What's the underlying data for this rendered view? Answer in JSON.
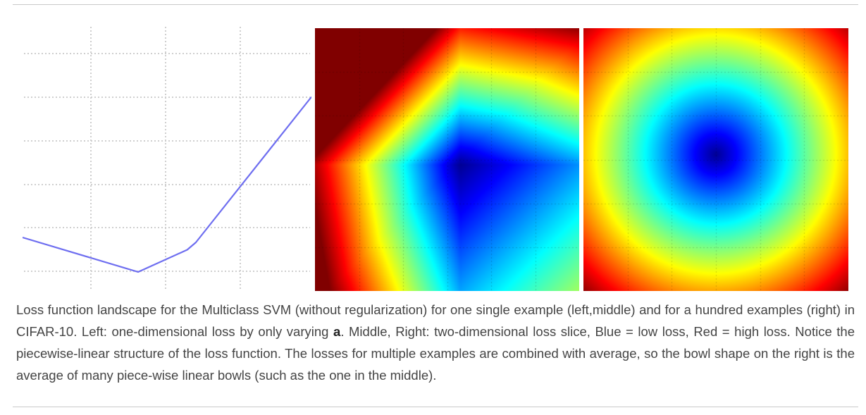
{
  "figure": {
    "left_plot": {
      "chart_data": {
        "type": "line",
        "title": "",
        "xlabel": "",
        "ylabel": "",
        "grid": true,
        "xlim": [
          0,
          10
        ],
        "ylim": [
          0,
          10
        ],
        "series": [
          {
            "x": [
              0,
              4.0,
              5.7,
              6.0,
              10
            ],
            "y": [
              1.4,
              0,
              0.9,
              1.2,
              7.1
            ]
          }
        ]
      },
      "line_color": "#6e6ef0",
      "grid_color": "#cfcfcf"
    },
    "middle_plot": {
      "chart_data": {
        "type": "heatmap",
        "title": "",
        "colormap": "jet",
        "grid": true,
        "description_of_values": "piecewise-linear loss slice, minimum near (0.5, 0.5)",
        "minimum": [
          0.5,
          0.5
        ]
      }
    },
    "right_plot": {
      "chart_data": {
        "type": "heatmap",
        "title": "",
        "colormap": "jet",
        "grid": true,
        "minimum": [
          0.5,
          0.5
        ]
      }
    }
  },
  "caption": {
    "part1": "Loss function landscape for the Multiclass SVM (without regularization) for one single example (left,middle) and for a hundred examples (right) in CIFAR-10. Left: one-dimensional loss by only varying ",
    "bold": "a",
    "part2": ". Middle, Right: two-dimensional loss slice, Blue = low loss, Red = high loss. Notice the piecewise-linear structure of the loss function. The losses for multiple examples are combined with average, so the bowl shape on the right is the average of many piece-wise linear bowls (such as the one in the middle)."
  }
}
